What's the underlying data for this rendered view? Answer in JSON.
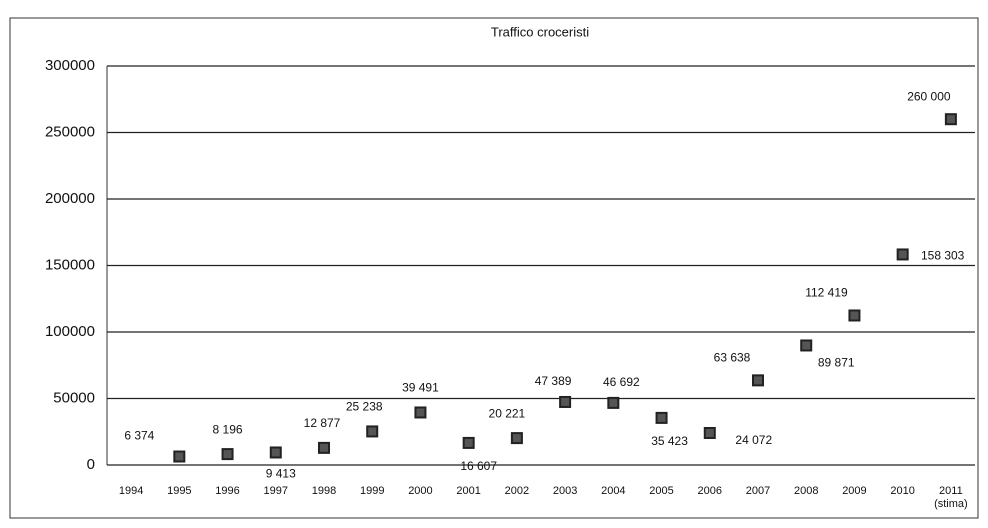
{
  "chart_data": {
    "type": "scatter",
    "title": "Traffico croceristi",
    "categories": [
      "1994",
      "1995",
      "1996",
      "1997",
      "1998",
      "1999",
      "2000",
      "2001",
      "2002",
      "2003",
      "2004",
      "2005",
      "2006",
      "2007",
      "2008",
      "2009",
      "2010",
      "2011 (stima)"
    ],
    "values": [
      null,
      6374,
      8196,
      9413,
      12877,
      25238,
      39491,
      16607,
      20221,
      47389,
      46692,
      35423,
      24072,
      63638,
      89871,
      112419,
      158303,
      260000
    ],
    "value_labels": [
      null,
      "6 374",
      "8 196",
      "9 413",
      "12 877",
      "25 238",
      "39 491",
      "16 607",
      "20 221",
      "47 389",
      "46 692",
      "35 423",
      "24 072",
      "63 638",
      "89 871",
      "112 419",
      "158 303",
      "260 000"
    ],
    "color": "#222222",
    "ylim": [
      0,
      300000
    ],
    "yticks": [
      0,
      50000,
      100000,
      150000,
      200000,
      250000,
      300000
    ],
    "grid": true
  }
}
